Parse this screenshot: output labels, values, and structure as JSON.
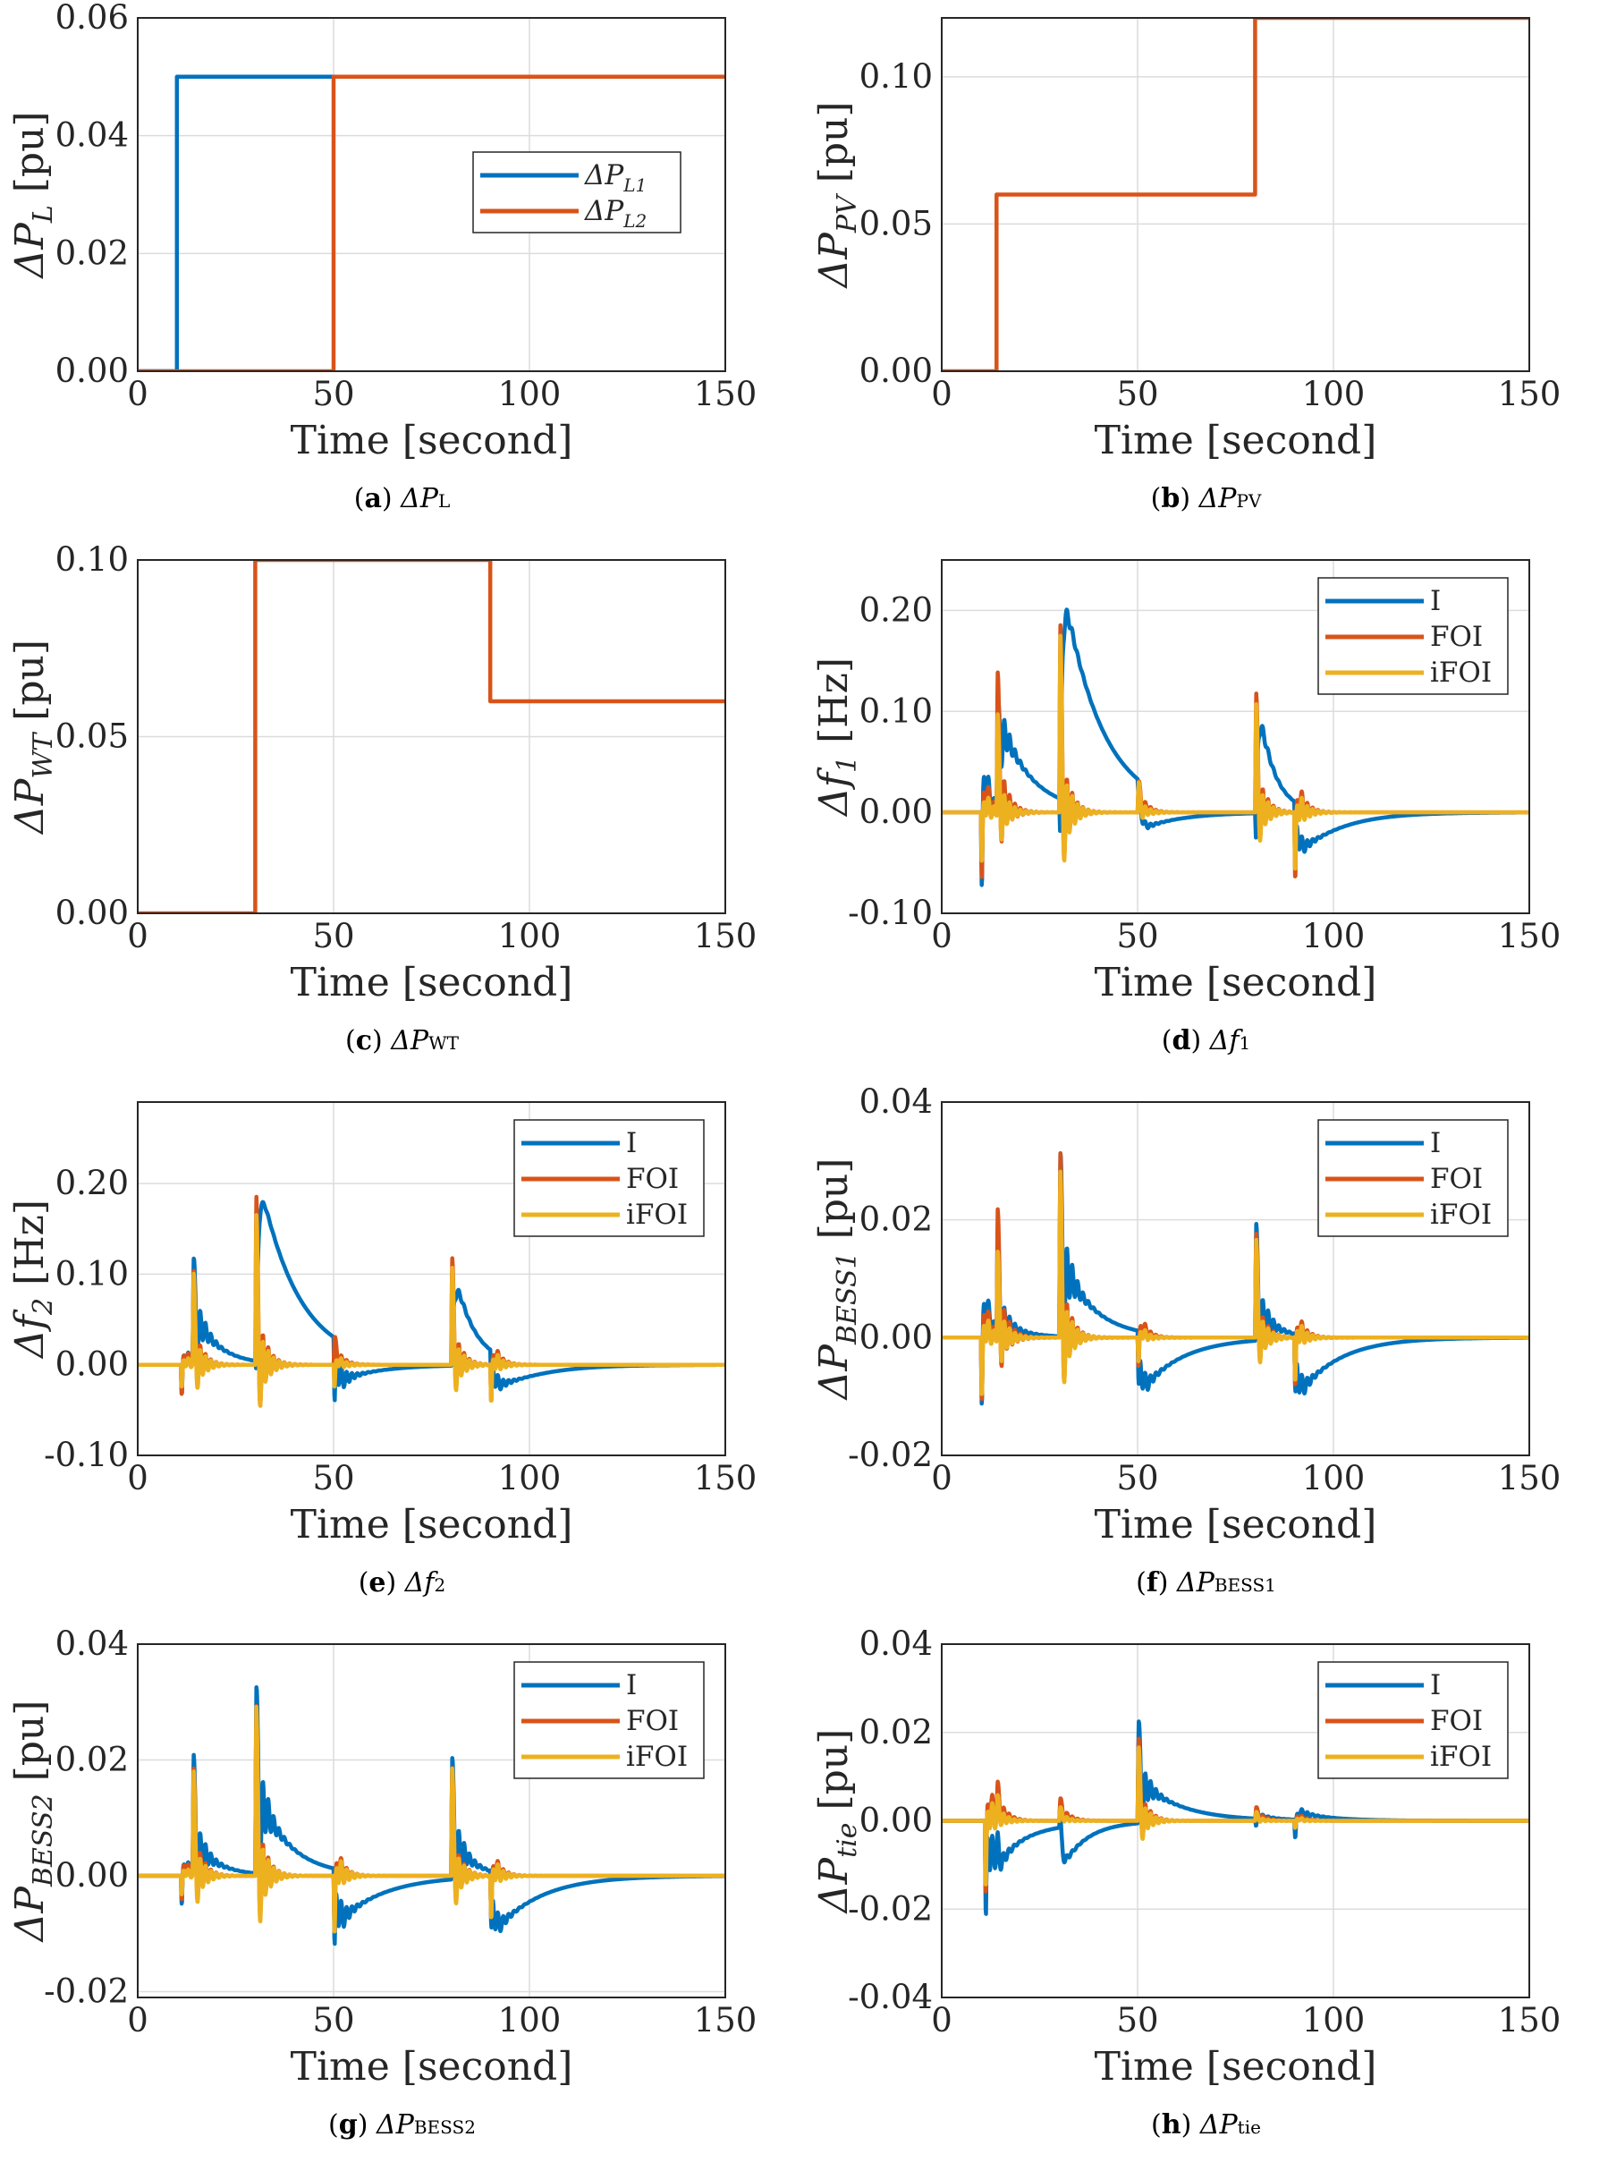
{
  "colors": {
    "I": "#0072BD",
    "FOI": "#D95319",
    "iFOI": "#EDB120",
    "L1": "#0072BD",
    "L2": "#D95319",
    "PV": "#D95319",
    "WT": "#D95319"
  },
  "chart_data": [
    {
      "id": "a",
      "type": "line",
      "caption": {
        "letter": "a",
        "delta": "ΔP",
        "sub": "L"
      },
      "xlabel": "Time [second]",
      "ylabel": {
        "main": "ΔP",
        "sub": "L",
        "unit": "[pu]"
      },
      "xlim": [
        0,
        150
      ],
      "ylim": [
        0,
        0.06
      ],
      "xticks": [
        0,
        50,
        100,
        150
      ],
      "xtick_labels": [
        "0",
        "50",
        "100",
        "150"
      ],
      "yticks": [
        0,
        0.02,
        0.04,
        0.06
      ],
      "ytick_labels": [
        "0.00",
        "0.02",
        "0.04",
        "0.06"
      ],
      "legend_position": "center-right",
      "series": [
        {
          "name": "ΔP",
          "sub": "L1",
          "color_key": "L1",
          "points": [
            [
              0,
              0
            ],
            [
              10,
              0
            ],
            [
              10,
              0.05
            ],
            [
              150,
              0.05
            ]
          ]
        },
        {
          "name": "ΔP",
          "sub": "L2",
          "color_key": "L2",
          "points": [
            [
              0,
              0
            ],
            [
              50,
              0
            ],
            [
              50,
              0.05
            ],
            [
              150,
              0.05
            ]
          ]
        }
      ]
    },
    {
      "id": "b",
      "type": "line",
      "caption": {
        "letter": "b",
        "delta": "ΔP",
        "sub": "PV"
      },
      "xlabel": "Time [second]",
      "ylabel": {
        "main": "ΔP",
        "sub": "PV",
        "unit": "[pu]"
      },
      "xlim": [
        0,
        150
      ],
      "ylim": [
        0,
        0.12
      ],
      "xticks": [
        0,
        50,
        100,
        150
      ],
      "xtick_labels": [
        "0",
        "50",
        "100",
        "150"
      ],
      "yticks": [
        0,
        0.05,
        0.1
      ],
      "ytick_labels": [
        "0.00",
        "0.05",
        "0.10"
      ],
      "legend_position": "none",
      "series": [
        {
          "name": "ΔP_PV",
          "color_key": "PV",
          "points": [
            [
              0,
              0
            ],
            [
              14,
              0
            ],
            [
              14,
              0.06
            ],
            [
              80,
              0.06
            ],
            [
              80,
              0.12
            ],
            [
              150,
              0.12
            ]
          ]
        }
      ]
    },
    {
      "id": "c",
      "type": "line",
      "caption": {
        "letter": "c",
        "delta": "ΔP",
        "sub": "WT"
      },
      "xlabel": "Time [second]",
      "ylabel": {
        "main": "ΔP",
        "sub": "WT",
        "unit": "[pu]"
      },
      "xlim": [
        0,
        150
      ],
      "ylim": [
        0,
        0.1
      ],
      "xticks": [
        0,
        50,
        100,
        150
      ],
      "xtick_labels": [
        "0",
        "50",
        "100",
        "150"
      ],
      "yticks": [
        0,
        0.05,
        0.1
      ],
      "ytick_labels": [
        "0.00",
        "0.05",
        "0.10"
      ],
      "legend_position": "none",
      "series": [
        {
          "name": "ΔP_WT",
          "color_key": "WT",
          "points": [
            [
              0,
              0
            ],
            [
              30,
              0
            ],
            [
              30,
              0.1
            ],
            [
              90,
              0.1
            ],
            [
              90,
              0.06
            ],
            [
              150,
              0.06
            ]
          ]
        }
      ]
    },
    {
      "id": "d",
      "type": "line",
      "caption": {
        "letter": "d",
        "delta": "Δf",
        "sub": "1"
      },
      "xlabel": "Time [second]",
      "ylabel": {
        "main": "Δf",
        "sub": "1",
        "unit": "[Hz]"
      },
      "xlim": [
        0,
        150
      ],
      "ylim": [
        -0.1,
        0.25
      ],
      "xticks": [
        0,
        50,
        100,
        150
      ],
      "xtick_labels": [
        "0",
        "50",
        "100",
        "150"
      ],
      "yticks": [
        -0.1,
        0.0,
        0.1,
        0.2
      ],
      "ytick_labels": [
        "-0.10",
        "0.00",
        "0.10",
        "0.20"
      ],
      "legend_position": "top-right",
      "series": [
        {
          "name": "I",
          "color_key": "I",
          "events": [
            [
              10,
              -0.09,
              0.08,
              1.2
            ],
            [
              14,
              0.09,
              0.1,
              8
            ],
            [
              30,
              -0.04,
              0.23,
              10
            ],
            [
              50,
              -0.02,
              -0.05,
              10
            ],
            [
              80,
              -0.03,
              0.13,
              4
            ],
            [
              90,
              -0.05,
              -0.05,
              10
            ]
          ]
        },
        {
          "name": "FOI",
          "color_key": "FOI",
          "events": [
            [
              10,
              -0.08,
              0.04,
              1.3
            ],
            [
              14,
              0.14,
              0.03,
              1.5
            ],
            [
              30,
              0.19,
              0.02,
              1.5
            ],
            [
              50,
              0.03,
              0.02,
              1.5
            ],
            [
              80,
              0.12,
              0.02,
              1.5
            ],
            [
              90,
              -0.08,
              0.02,
              1.5
            ]
          ]
        },
        {
          "name": "iFOI",
          "color_key": "iFOI",
          "events": [
            [
              10,
              -0.06,
              0.02,
              1.0
            ],
            [
              14,
              0.1,
              0.01,
              1.0
            ],
            [
              30,
              0.18,
              0.01,
              1.0
            ],
            [
              50,
              0.03,
              0.01,
              1.0
            ],
            [
              80,
              0.11,
              0.01,
              1.0
            ],
            [
              90,
              -0.07,
              0.01,
              1.0
            ]
          ]
        }
      ]
    },
    {
      "id": "e",
      "type": "line",
      "caption": {
        "letter": "e",
        "delta": "Δf",
        "sub": "2"
      },
      "xlabel": "Time [second]",
      "ylabel": {
        "main": "Δf",
        "sub": "2",
        "unit": "[Hz]"
      },
      "xlim": [
        0,
        150
      ],
      "ylim": [
        -0.1,
        0.29
      ],
      "xticks": [
        0,
        50,
        100,
        150
      ],
      "xtick_labels": [
        "0",
        "50",
        "100",
        "150"
      ],
      "yticks": [
        -0.1,
        0.0,
        0.1,
        0.2
      ],
      "ytick_labels": [
        "-0.10",
        "0.00",
        "0.10",
        "0.20"
      ],
      "legend_position": "top-right",
      "series": [
        {
          "name": "I",
          "color_key": "I",
          "events": [
            [
              11,
              -0.04,
              0.02,
              1.5
            ],
            [
              14,
              0.11,
              0.06,
              6
            ],
            [
              30,
              -0.01,
              0.22,
              10
            ],
            [
              50,
              -0.08,
              -0.05,
              10
            ],
            [
              80,
              0.02,
              0.12,
              5
            ],
            [
              90,
              -0.05,
              -0.04,
              10
            ]
          ]
        },
        {
          "name": "FOI",
          "color_key": "FOI",
          "events": [
            [
              11,
              -0.04,
              0.02,
              1.3
            ],
            [
              14,
              0.1,
              0.02,
              1.5
            ],
            [
              30,
              0.19,
              0.02,
              1.5
            ],
            [
              50,
              0.03,
              0.02,
              1.5
            ],
            [
              80,
              0.12,
              0.02,
              1.5
            ],
            [
              90,
              -0.05,
              0.02,
              1.5
            ]
          ]
        },
        {
          "name": "iFOI",
          "color_key": "iFOI",
          "events": [
            [
              11,
              -0.03,
              0.01,
              1.0
            ],
            [
              14,
              0.1,
              0.01,
              1.0
            ],
            [
              30,
              0.17,
              0.01,
              1.0
            ],
            [
              50,
              -0.03,
              0.01,
              1.0
            ],
            [
              80,
              0.11,
              0.01,
              1.0
            ],
            [
              90,
              -0.05,
              0.01,
              1.0
            ]
          ]
        }
      ]
    },
    {
      "id": "f",
      "type": "line",
      "caption": {
        "letter": "f",
        "delta": "ΔP",
        "sub": "BESS1"
      },
      "xlabel": "Time [second]",
      "ylabel": {
        "main": "ΔP",
        "sub": "BESS1",
        "unit": "[pu]"
      },
      "xlim": [
        0,
        150
      ],
      "ylim": [
        -0.02,
        0.04
      ],
      "xticks": [
        0,
        50,
        100,
        150
      ],
      "xtick_labels": [
        "0",
        "50",
        "100",
        "150"
      ],
      "yticks": [
        -0.02,
        0.0,
        0.02,
        0.04
      ],
      "ytick_labels": [
        "-0.02",
        "0.00",
        "0.02",
        "0.04"
      ],
      "legend_position": "top-right",
      "series": [
        {
          "name": "I",
          "color_key": "I",
          "events": [
            [
              10,
              -0.014,
              0.012,
              1.5
            ],
            [
              14,
              0.017,
              0.003,
              6
            ],
            [
              30,
              0.031,
              0.014,
              8
            ],
            [
              50,
              -0.01,
              -0.011,
              10
            ],
            [
              80,
              0.02,
              0.006,
              5
            ],
            [
              90,
              -0.011,
              -0.011,
              10
            ]
          ]
        },
        {
          "name": "FOI",
          "color_key": "FOI",
          "events": [
            [
              10,
              -0.013,
              0.008,
              1.3
            ],
            [
              14,
              0.022,
              0.004,
              1.5
            ],
            [
              30,
              0.032,
              0.004,
              1.5
            ],
            [
              50,
              -0.006,
              0.004,
              1.5
            ],
            [
              80,
              0.018,
              0.003,
              1.5
            ],
            [
              90,
              -0.01,
              0.003,
              1.5
            ]
          ]
        },
        {
          "name": "iFOI",
          "color_key": "iFOI",
          "events": [
            [
              10,
              -0.012,
              0.004,
              1.0
            ],
            [
              14,
              0.015,
              0.002,
              1.0
            ],
            [
              30,
              0.029,
              0.002,
              1.0
            ],
            [
              50,
              -0.005,
              0.002,
              1.0
            ],
            [
              80,
              0.017,
              0.002,
              1.0
            ],
            [
              90,
              -0.009,
              0.002,
              1.0
            ]
          ]
        }
      ]
    },
    {
      "id": "g",
      "type": "line",
      "caption": {
        "letter": "g",
        "delta": "ΔP",
        "sub": "BESS2"
      },
      "xlabel": "Time [second]",
      "ylabel": {
        "main": "ΔP",
        "sub": "BESS2",
        "unit": "[pu]"
      },
      "xlim": [
        0,
        150
      ],
      "ylim": [
        -0.021,
        0.04
      ],
      "xticks": [
        0,
        50,
        100,
        150
      ],
      "xtick_labels": [
        "0",
        "50",
        "100",
        "150"
      ],
      "yticks": [
        -0.02,
        0.0,
        0.02,
        0.04
      ],
      "ytick_labels": [
        "-0.02",
        "0.00",
        "0.02",
        "0.04"
      ],
      "legend_position": "top-right",
      "series": [
        {
          "name": "I",
          "color_key": "I",
          "events": [
            [
              11,
              -0.006,
              0.004,
              1.5
            ],
            [
              14,
              0.02,
              0.006,
              6
            ],
            [
              30,
              0.032,
              0.015,
              8
            ],
            [
              50,
              -0.015,
              -0.01,
              11
            ],
            [
              80,
              0.021,
              0.008,
              5
            ],
            [
              90,
              -0.011,
              -0.011,
              11
            ]
          ]
        },
        {
          "name": "FOI",
          "color_key": "FOI",
          "events": [
            [
              11,
              -0.005,
              0.004,
              1.3
            ],
            [
              14,
              0.018,
              0.004,
              1.5
            ],
            [
              30,
              0.03,
              0.004,
              1.5
            ],
            [
              50,
              -0.01,
              0.004,
              1.5
            ],
            [
              80,
              0.019,
              0.003,
              1.5
            ],
            [
              90,
              -0.009,
              0.003,
              1.5
            ]
          ]
        },
        {
          "name": "iFOI",
          "color_key": "iFOI",
          "events": [
            [
              11,
              -0.004,
              0.002,
              1.0
            ],
            [
              14,
              0.018,
              0.002,
              1.0
            ],
            [
              30,
              0.03,
              0.002,
              1.0
            ],
            [
              50,
              -0.012,
              0.002,
              1.0
            ],
            [
              80,
              0.019,
              0.002,
              1.0
            ],
            [
              90,
              -0.009,
              0.002,
              1.0
            ]
          ]
        }
      ]
    },
    {
      "id": "h",
      "type": "line",
      "caption": {
        "letter": "h",
        "delta": "ΔP",
        "sub": "tie"
      },
      "xlabel": "Time [second]",
      "ylabel": {
        "main": "ΔP",
        "sub": "tie",
        "unit": "[pu]"
      },
      "xlim": [
        0,
        150
      ],
      "ylim": [
        -0.04,
        0.04
      ],
      "xticks": [
        0,
        50,
        100,
        150
      ],
      "xtick_labels": [
        "0",
        "50",
        "100",
        "150"
      ],
      "yticks": [
        -0.04,
        -0.02,
        0.0,
        0.02,
        0.04
      ],
      "ytick_labels": [
        "-0.04",
        "-0.02",
        "0.00",
        "0.02",
        "0.04"
      ],
      "legend_position": "top-right",
      "series": [
        {
          "name": "I",
          "color_key": "I",
          "events": [
            [
              11,
              -0.025,
              -0.01,
              10
            ],
            [
              14,
              0.003,
              -0.004,
              3
            ],
            [
              30,
              0.004,
              -0.01,
              6
            ],
            [
              50,
              0.023,
              0.01,
              10
            ],
            [
              80,
              -0.002,
              0.001,
              4
            ],
            [
              90,
              -0.005,
              0.002,
              8
            ]
          ]
        },
        {
          "name": "FOI",
          "color_key": "FOI",
          "events": [
            [
              11,
              -0.02,
              0.006,
              1.8
            ],
            [
              14,
              0.006,
              0.003,
              1.8
            ],
            [
              30,
              0.005,
              0.003,
              1.8
            ],
            [
              50,
              0.019,
              0.003,
              1.8
            ],
            [
              80,
              0.003,
              0.002,
              1.8
            ],
            [
              90,
              -0.002,
              0.002,
              1.8
            ]
          ]
        },
        {
          "name": "iFOI",
          "color_key": "iFOI",
          "events": [
            [
              11,
              -0.018,
              0.003,
              1.2
            ],
            [
              14,
              0.004,
              0.002,
              1.2
            ],
            [
              30,
              0.003,
              0.002,
              1.2
            ],
            [
              50,
              0.017,
              0.002,
              1.2
            ],
            [
              80,
              0.002,
              0.001,
              1.2
            ],
            [
              90,
              -0.002,
              0.001,
              1.2
            ]
          ]
        }
      ]
    }
  ]
}
